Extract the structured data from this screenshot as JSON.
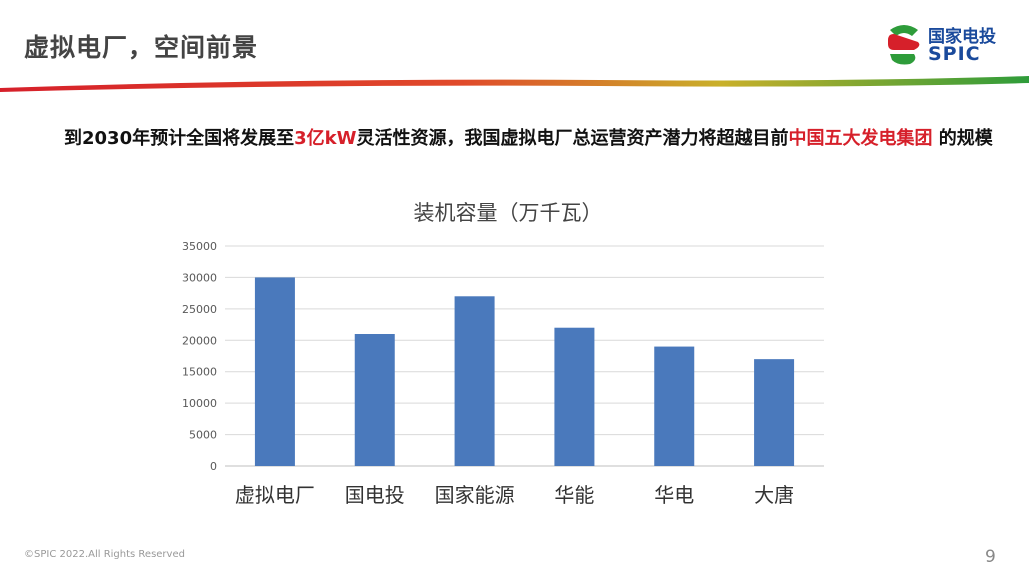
{
  "header": {
    "title": "虚拟电厂，空间前景",
    "logo_cn": "国家电投",
    "logo_en": "SPIC"
  },
  "headline": {
    "part1": "到2030年预计全国将发展至",
    "highlight1": "3亿kW",
    "part2": "灵活性资源，我国虚拟电厂总运营资产潜力将超越目前",
    "highlight2": "中国五大发电集团",
    "part3": " 的规模"
  },
  "colors": {
    "title_text": "#444444",
    "highlight": "#d6202a",
    "bar_fill": "#4a79bc",
    "logo_blue": "#1a4a9c",
    "logo_green": "#2e9c3a",
    "logo_red": "#d6202a"
  },
  "chart_data": {
    "type": "bar",
    "title": "装机容量（万千瓦）",
    "categories": [
      "虚拟电厂",
      "国电投",
      "国家能源",
      "华能",
      "华电",
      "大唐"
    ],
    "values": [
      30000,
      21000,
      27000,
      22000,
      19000,
      17000
    ],
    "ylim": [
      0,
      35000
    ],
    "yticks": [
      0,
      5000,
      10000,
      15000,
      20000,
      25000,
      30000,
      35000
    ],
    "grid": true,
    "legend": "none"
  },
  "footer": {
    "copyright": "©SPIC 2022.All Rights Reserved",
    "page_number": "9"
  }
}
